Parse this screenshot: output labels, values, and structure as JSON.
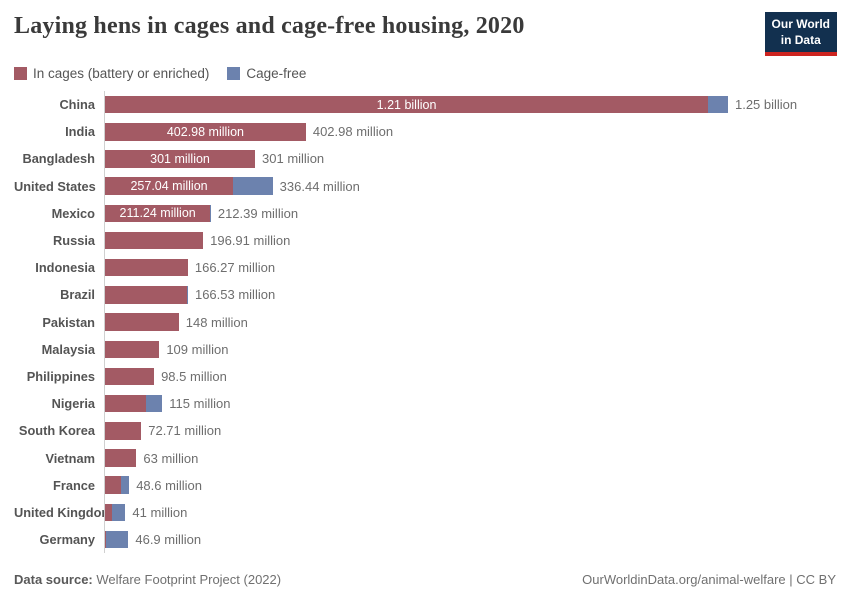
{
  "header": {
    "title": "Laying hens in cages and cage-free housing, 2020",
    "logo_line1": "Our World",
    "logo_line2": "in Data"
  },
  "legend": [
    {
      "label": "In cages (battery or enriched)",
      "color": "#a35a64"
    },
    {
      "label": "Cage-free",
      "color": "#6c82ae"
    }
  ],
  "chart_data": {
    "type": "bar",
    "orientation": "horizontal",
    "stacked": true,
    "unit": "million hens",
    "x_max_million": 1250,
    "series_names": [
      "In cages (battery or enriched)",
      "Cage-free"
    ],
    "rows": [
      {
        "country": "China",
        "cages": 1210,
        "cage_free": 40,
        "inner_label": "1.21 billion",
        "total_label": "1.25 billion"
      },
      {
        "country": "India",
        "cages": 402.98,
        "cage_free": 0,
        "inner_label": "402.98 million",
        "total_label": "402.98 million"
      },
      {
        "country": "Bangladesh",
        "cages": 301,
        "cage_free": 0,
        "inner_label": "301 million",
        "total_label": "301 million"
      },
      {
        "country": "United States",
        "cages": 257.04,
        "cage_free": 79.4,
        "inner_label": "257.04 million",
        "total_label": "336.44 million"
      },
      {
        "country": "Mexico",
        "cages": 211.24,
        "cage_free": 1.15,
        "inner_label": "211.24 million",
        "total_label": "212.39 million"
      },
      {
        "country": "Russia",
        "cages": 196.91,
        "cage_free": 0,
        "inner_label": null,
        "total_label": "196.91 million"
      },
      {
        "country": "Indonesia",
        "cages": 166.27,
        "cage_free": 0,
        "inner_label": null,
        "total_label": "166.27 million"
      },
      {
        "country": "Brazil",
        "cages": 164,
        "cage_free": 2.5,
        "inner_label": null,
        "total_label": "166.53 million"
      },
      {
        "country": "Pakistan",
        "cages": 148,
        "cage_free": 0,
        "inner_label": null,
        "total_label": "148 million"
      },
      {
        "country": "Malaysia",
        "cages": 109,
        "cage_free": 0,
        "inner_label": null,
        "total_label": "109 million"
      },
      {
        "country": "Philippines",
        "cages": 98.5,
        "cage_free": 0,
        "inner_label": null,
        "total_label": "98.5 million"
      },
      {
        "country": "Nigeria",
        "cages": 82,
        "cage_free": 33,
        "inner_label": null,
        "total_label": "115 million"
      },
      {
        "country": "South Korea",
        "cages": 72.71,
        "cage_free": 0,
        "inner_label": null,
        "total_label": "72.71 million"
      },
      {
        "country": "Vietnam",
        "cages": 63,
        "cage_free": 0,
        "inner_label": null,
        "total_label": "63 million"
      },
      {
        "country": "France",
        "cages": 32.4,
        "cage_free": 16.2,
        "inner_label": null,
        "total_label": "48.6 million"
      },
      {
        "country": "United Kingdom",
        "cages": 15,
        "cage_free": 26,
        "inner_label": null,
        "total_label": "41 million"
      },
      {
        "country": "Germany",
        "cages": 1.5,
        "cage_free": 45.4,
        "inner_label": null,
        "total_label": "46.9 million"
      }
    ]
  },
  "footer": {
    "source_label": "Data source:",
    "source_value": " Welfare Footprint Project (2022)",
    "credit": "OurWorldinData.org/animal-welfare | CC BY"
  },
  "colors": {
    "cages": "#a35a64",
    "cage_free": "#6c82ae",
    "logo_bg": "#12304f",
    "logo_accent": "#cd2420"
  }
}
